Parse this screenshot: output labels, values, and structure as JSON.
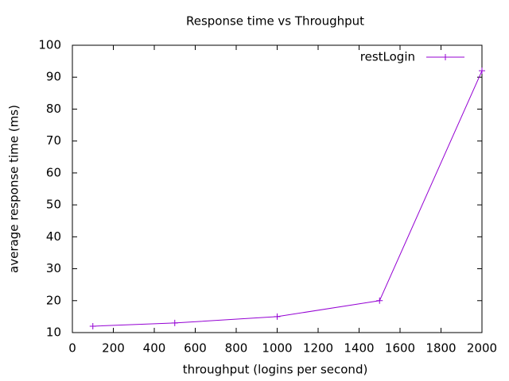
{
  "chart_data": {
    "type": "line",
    "title": "Response time vs Throughput",
    "xlabel": "throughput (logins per second)",
    "ylabel": "average response time (ms)",
    "x": [
      100,
      500,
      1000,
      1500,
      2000
    ],
    "series": [
      {
        "name": "restLogin",
        "color": "#9400d3",
        "values": [
          12,
          13,
          15,
          20,
          92
        ]
      }
    ],
    "xlim": [
      0,
      2000
    ],
    "xticks": [
      0,
      200,
      400,
      600,
      800,
      1000,
      1200,
      1400,
      1600,
      1800,
      2000
    ],
    "ylim": [
      10,
      100
    ],
    "yticks": [
      10,
      20,
      30,
      40,
      50,
      60,
      70,
      80,
      90,
      100
    ],
    "legend": "top right",
    "markers": true
  }
}
